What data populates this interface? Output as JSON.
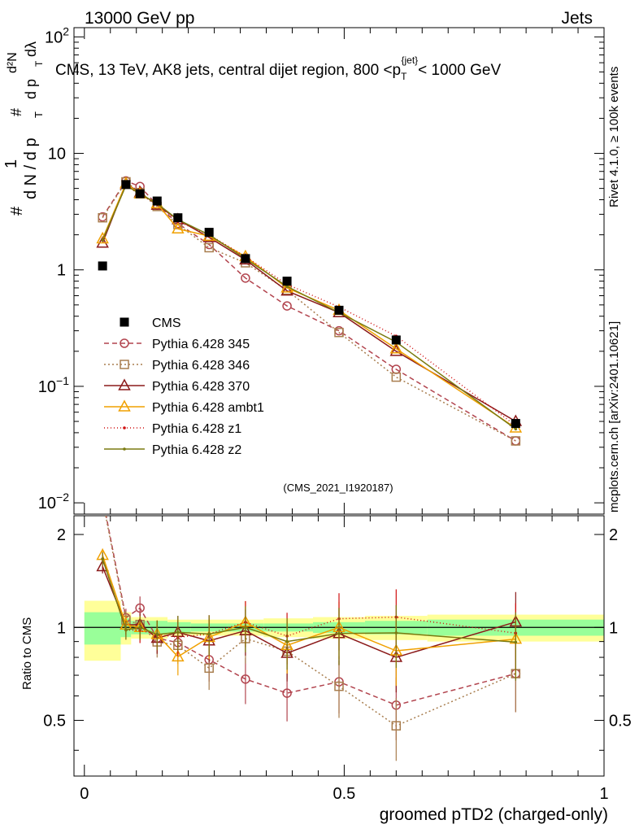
{
  "header": {
    "left": "13000 GeV pp",
    "right": "Jets"
  },
  "side_labels": {
    "rivet": "Rivet 4.1.0, ≥ 100k events",
    "mcplots": "mcplots.cern.ch [arXiv:2401.10621]"
  },
  "chart_data": {
    "type": "line",
    "title": "CMS, 13 TeV, AK8 jets, central dijet region, 800 <p_T^{jet}< 1000 GeV",
    "title_parts": {
      "pre": "CMS, 13 TeV, AK8 jets, central dijet region, 800 <p",
      "sup": "{jet}",
      "sub": "T",
      "post": "< 1000 GeV"
    },
    "ylabel_parts": {
      "hash": "#",
      "one": "1",
      "dN": "d N / d p",
      "T": "T",
      "d2N": "d²N",
      "dpdl": "d p",
      "dl": "dλ"
    },
    "xlabel": "groomed pTD2 (charged-only)",
    "ratio_ylabel": "Ratio to CMS",
    "analysis_id": "(CMS_2021_I1920187)",
    "xlim": [
      -0.02,
      1.0
    ],
    "ylim": [
      0.008,
      120
    ],
    "yscale": "log",
    "ratio_ylim": [
      0.33,
      2.3
    ],
    "x_ticks": [
      "0",
      "0.5",
      "1"
    ],
    "x_tick_values": [
      0,
      0.5,
      1
    ],
    "y_ticks": [
      {
        "value": 100,
        "base": "10",
        "exp": "2"
      },
      {
        "value": 10,
        "base": "10",
        "exp": ""
      },
      {
        "value": 1,
        "base": "1",
        "exp": ""
      },
      {
        "value": 0.1,
        "base": "10",
        "exp": "−1"
      },
      {
        "value": 0.01,
        "base": "10",
        "exp": "−2"
      }
    ],
    "ratio_ticks": [
      "0.5",
      "1",
      "2"
    ],
    "ratio_tick_values": [
      0.5,
      1,
      2
    ],
    "x": [
      0.035,
      0.08,
      0.107,
      0.14,
      0.18,
      0.24,
      0.31,
      0.39,
      0.49,
      0.6,
      0.83
    ],
    "cms_band_edges": [
      0,
      0.07,
      0.09,
      0.125,
      0.16,
      0.205,
      0.275,
      0.345,
      0.44,
      0.54,
      0.66,
      1.0
    ],
    "cms_rel_err_stat": [
      0.12,
      0.07,
      0.05,
      0.05,
      0.04,
      0.03,
      0.03,
      0.03,
      0.04,
      0.05,
      0.06
    ],
    "cms_rel_err_tot": [
      0.22,
      0.12,
      0.08,
      0.08,
      0.06,
      0.06,
      0.06,
      0.07,
      0.08,
      0.09,
      0.1
    ],
    "series": [
      {
        "name": "CMS",
        "color": "#000000",
        "marker": "square",
        "dash": "none",
        "values": [
          1.08,
          5.4,
          4.5,
          3.9,
          2.8,
          2.1,
          1.25,
          0.8,
          0.45,
          0.25,
          0.048
        ]
      },
      {
        "name": "Pythia 6.428 345",
        "color": "#b2444e",
        "marker": "circle",
        "dash": "6,4",
        "values": [
          2.85,
          5.8,
          5.2,
          3.6,
          2.5,
          1.65,
          0.85,
          0.49,
          0.3,
          0.14,
          0.034
        ]
      },
      {
        "name": "Pythia 6.428 346",
        "color": "#a87d4e",
        "marker": "square-open",
        "dash": "2,3",
        "values": [
          2.8,
          5.7,
          4.6,
          3.5,
          2.45,
          1.55,
          1.15,
          0.67,
          0.29,
          0.12,
          0.034
        ]
      },
      {
        "name": "Pythia 6.428 370",
        "color": "#8b1a1a",
        "marker": "triangle",
        "dash": "none",
        "values": [
          1.7,
          5.5,
          4.6,
          3.6,
          2.7,
          1.9,
          1.22,
          0.66,
          0.43,
          0.2,
          0.05
        ]
      },
      {
        "name": "Pythia 6.428 ambt1",
        "color": "#f0a000",
        "marker": "triangle",
        "dash": "none",
        "values": [
          1.85,
          5.5,
          4.5,
          3.7,
          2.25,
          1.95,
          1.3,
          0.7,
          0.45,
          0.21,
          0.044
        ]
      },
      {
        "name": "Pythia 6.428 z1",
        "color": "#d01010",
        "marker": "dot",
        "dash": "1,3",
        "values": [
          1.8,
          5.3,
          4.4,
          3.7,
          2.6,
          2.0,
          1.3,
          0.75,
          0.48,
          0.27,
          0.046
        ]
      },
      {
        "name": "Pythia 6.428 z2",
        "color": "#7a7a10",
        "marker": "dot",
        "dash": "none",
        "values": [
          1.8,
          5.3,
          4.5,
          3.7,
          2.7,
          2.0,
          1.25,
          0.72,
          0.43,
          0.24,
          0.043
        ]
      }
    ]
  }
}
